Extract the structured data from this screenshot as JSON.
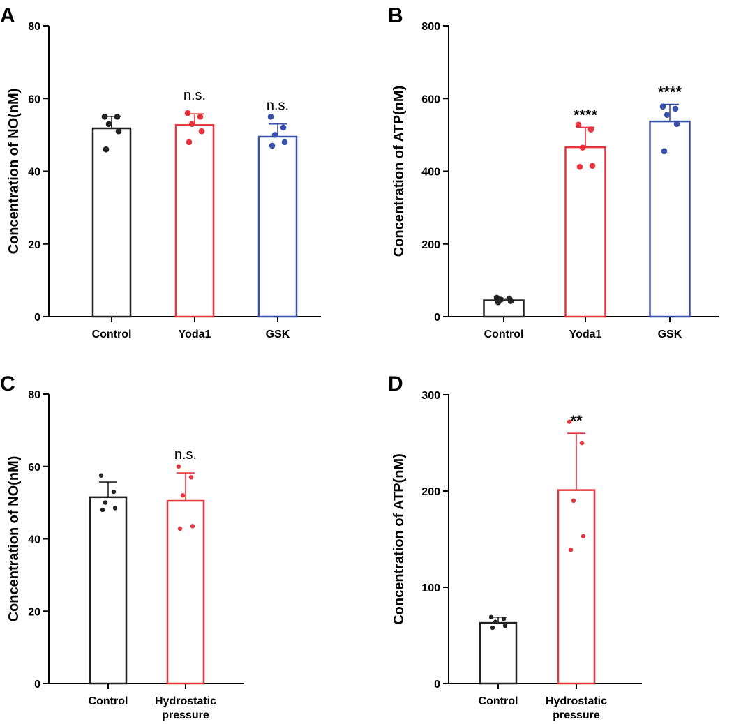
{
  "chart_data": [
    {
      "type": "bar",
      "panel": "A",
      "ylabel": "Concentration of NO(nM)",
      "ylim": [
        0,
        80
      ],
      "yticks": [
        0,
        20,
        40,
        60,
        80
      ],
      "categories": [
        "Control",
        "Yoda1",
        "GSK"
      ],
      "values": [
        51.8,
        52.7,
        49.5
      ],
      "errors": [
        3.3,
        3.1,
        3.5
      ],
      "points": [
        [
          55,
          55,
          53,
          51,
          46
        ],
        [
          56,
          55,
          53,
          51,
          48
        ],
        [
          55,
          52,
          50,
          48,
          47
        ]
      ],
      "annotations": [
        "",
        "n.s.",
        "n.s."
      ],
      "colors": [
        "#222222",
        "#e8323c",
        "#3850a8"
      ]
    },
    {
      "type": "bar",
      "panel": "B",
      "ylabel": "Concentration of ATP(nM)",
      "ylim": [
        0,
        800
      ],
      "yticks": [
        0,
        200,
        400,
        600,
        800
      ],
      "categories": [
        "Control",
        "Yoda1",
        "GSK"
      ],
      "values": [
        45,
        466,
        537
      ],
      "errors": [
        4,
        55,
        47
      ],
      "points": [
        [
          52,
          50,
          47,
          43,
          40
        ],
        [
          528,
          515,
          465,
          415,
          412
        ],
        [
          578,
          572,
          555,
          530,
          455
        ]
      ],
      "annotations": [
        "",
        "****",
        "****"
      ],
      "colors": [
        "#222222",
        "#e8323c",
        "#3850a8"
      ]
    },
    {
      "type": "bar",
      "panel": "C",
      "ylabel": "Concentration of NO(nM)",
      "ylim": [
        0,
        80
      ],
      "yticks": [
        0,
        20,
        40,
        60,
        80
      ],
      "categories": [
        "Control",
        "Hydrostatic\npressure"
      ],
      "values": [
        51.5,
        50.5
      ],
      "errors": [
        4.2,
        7.7
      ],
      "points": [
        [
          57.5,
          53,
          50,
          48.5,
          48
        ],
        [
          60,
          57,
          52,
          43.5,
          42.8
        ]
      ],
      "annotations": [
        "",
        "n.s."
      ],
      "colors": [
        "#222222",
        "#e8323c"
      ]
    },
    {
      "type": "bar",
      "panel": "D",
      "ylabel": "Concentration of ATP(nM)",
      "ylim": [
        0,
        300
      ],
      "yticks": [
        0,
        100,
        200,
        300
      ],
      "categories": [
        "Control",
        "Hydrostatic\npressure"
      ],
      "values": [
        63,
        201
      ],
      "errors": [
        6,
        59
      ],
      "points": [
        [
          69,
          67,
          64,
          60,
          58
        ],
        [
          272,
          250,
          190,
          153,
          139
        ]
      ],
      "annotations": [
        "",
        "**"
      ],
      "colors": [
        "#222222",
        "#e8323c"
      ]
    }
  ]
}
